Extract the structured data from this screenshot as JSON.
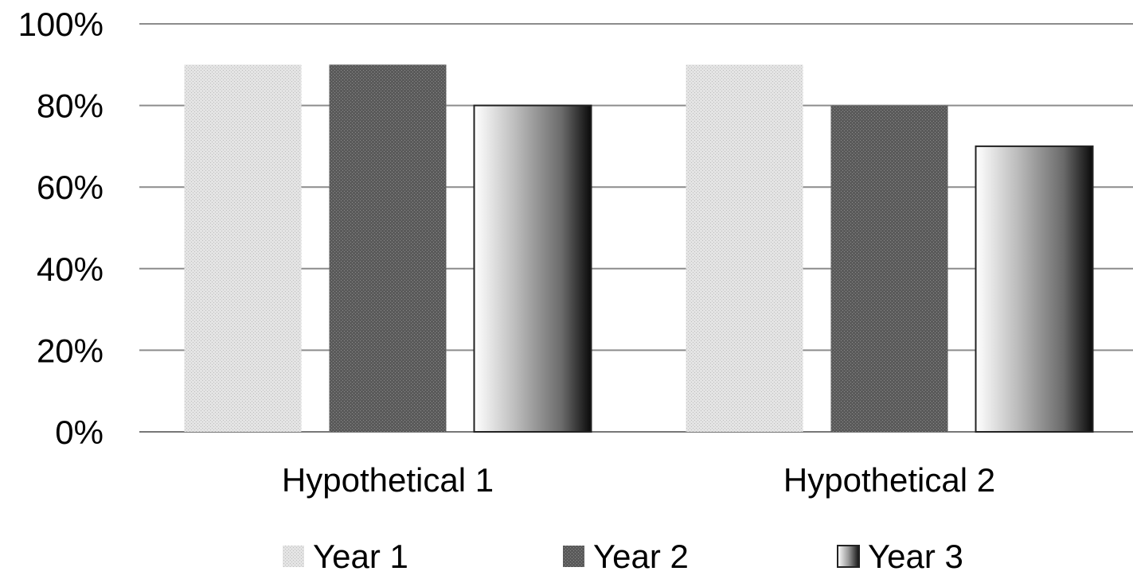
{
  "chart_data": {
    "type": "bar",
    "categories": [
      "Hypothetical 1",
      "Hypothetical 2"
    ],
    "series": [
      {
        "name": "Year 1",
        "values": [
          90,
          90
        ],
        "color": "#d9d9d9",
        "fill_style": "light-dotted"
      },
      {
        "name": "Year 2",
        "values": [
          90,
          80
        ],
        "color": "#595959",
        "fill_style": "dark-dotted"
      },
      {
        "name": "Year 3",
        "values": [
          80,
          70
        ],
        "color": "#7f7f7f",
        "fill_style": "gradient"
      }
    ],
    "title": "",
    "xlabel": "",
    "ylabel": "",
    "ylim": [
      0,
      100
    ],
    "yticks": [
      0,
      20,
      40,
      60,
      80,
      100
    ],
    "ytick_labels": [
      "0%",
      "20%",
      "40%",
      "60%",
      "80%",
      "100%"
    ],
    "grid": true,
    "legend_position": "bottom"
  }
}
